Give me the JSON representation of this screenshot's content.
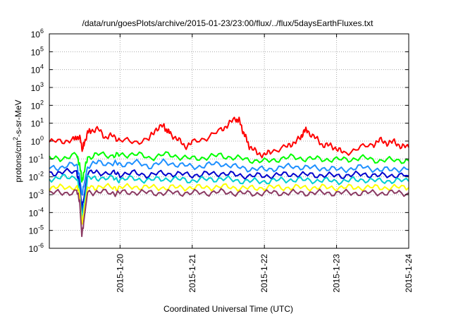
{
  "chart_data": {
    "type": "line",
    "title": "/data/run/goesPlots/archive/2015-01-23/23:00/flux/../flux/5daysEarthFluxes.txt",
    "xlabel": "Coordinated Universal Time (UTC)",
    "ylabel_base": "protons/cm",
    "ylabel_sup": "2",
    "ylabel_rest": "-s-sr-MeV",
    "y_scale": "log",
    "ylim_exp": [
      -6,
      6
    ],
    "y_ticks": [
      {
        "base": "10",
        "exp": "-6",
        "value": -6
      },
      {
        "base": "10",
        "exp": "-5",
        "value": -5
      },
      {
        "base": "10",
        "exp": "-4",
        "value": -4
      },
      {
        "base": "10",
        "exp": "-3",
        "value": -3
      },
      {
        "base": "10",
        "exp": "-2",
        "value": -2
      },
      {
        "base": "10",
        "exp": "-1",
        "value": -1
      },
      {
        "base": "10",
        "exp": "0",
        "value": 0
      },
      {
        "base": "10",
        "exp": "1",
        "value": 1
      },
      {
        "base": "10",
        "exp": "2",
        "value": 2
      },
      {
        "base": "10",
        "exp": "3",
        "value": 3
      },
      {
        "base": "10",
        "exp": "4",
        "value": 4
      },
      {
        "base": "10",
        "exp": "5",
        "value": 5
      },
      {
        "base": "10",
        "exp": "6",
        "value": 6
      }
    ],
    "xlim_days": [
      -0.98,
      4.0
    ],
    "x_ticks": [
      {
        "label": "2015-1-20",
        "value": 0
      },
      {
        "label": "2015-1-21",
        "value": 1
      },
      {
        "label": "2015-1-22",
        "value": 2
      },
      {
        "label": "2015-1-23",
        "value": 3
      },
      {
        "label": "2015-1-24",
        "value": 4
      }
    ],
    "grid": true,
    "series": [
      {
        "color": "#ff0000",
        "width": 2,
        "x": [
          -0.98,
          -0.8,
          -0.65,
          -0.6,
          -0.55,
          -0.52,
          -0.5,
          -0.45,
          -0.4,
          -0.3,
          -0.2,
          -0.1,
          0,
          0.2,
          0.4,
          0.5,
          0.6,
          0.65,
          0.7,
          0.8,
          0.9,
          1.0,
          1.2,
          1.4,
          1.5,
          1.6,
          1.65,
          1.7,
          1.75,
          1.8,
          1.9,
          2.0,
          2.1,
          2.3,
          2.4,
          2.5,
          2.55,
          2.6,
          2.7,
          2.8,
          2.9,
          3.0,
          3.1,
          3.3,
          3.5,
          3.6,
          3.7,
          3.8,
          3.9,
          4.0
        ],
        "y": [
          -0.05,
          0,
          0.05,
          0.25,
          0.1,
          -0.5,
          -0.15,
          0.45,
          0.6,
          0.65,
          0.2,
          0.3,
          0.05,
          -0.05,
          0.1,
          0.7,
          0.85,
          0.6,
          0.4,
          0.1,
          -0.3,
          -0.1,
          0.2,
          0.6,
          0.95,
          1.25,
          1.15,
          0.6,
          0.1,
          -0.35,
          -0.65,
          -0.8,
          -0.55,
          -0.35,
          -0.1,
          0.15,
          0.6,
          0.55,
          0.2,
          -0.2,
          -0.25,
          -0.4,
          -0.7,
          -0.4,
          -0.2,
          0.05,
          -0.1,
          -0.05,
          -0.3,
          -0.35
        ]
      },
      {
        "color": "#00ff00",
        "width": 2,
        "x": [
          -0.98,
          -0.8,
          -0.6,
          -0.56,
          -0.53,
          -0.5,
          -0.45,
          -0.3,
          -0.1,
          0,
          0.2,
          0.4,
          0.6,
          0.8,
          1.0,
          1.2,
          1.4,
          1.6,
          1.8,
          2.0,
          2.2,
          2.4,
          2.6,
          2.8,
          3.0,
          3.2,
          3.4,
          3.6,
          3.8,
          4.0
        ],
        "y": [
          -1.0,
          -0.95,
          -0.8,
          -1.3,
          -2.2,
          -1.8,
          -0.9,
          -0.75,
          -0.8,
          -0.8,
          -0.7,
          -0.95,
          -0.75,
          -0.85,
          -1.0,
          -0.9,
          -0.8,
          -0.95,
          -1.05,
          -1.15,
          -1.0,
          -0.9,
          -1.0,
          -1.0,
          -1.05,
          -1.0,
          -0.95,
          -1.1,
          -1.05,
          -1.1
        ]
      },
      {
        "color": "#1e90ff",
        "width": 2,
        "x": [
          -0.98,
          -0.8,
          -0.6,
          -0.56,
          -0.53,
          -0.5,
          -0.45,
          -0.3,
          -0.1,
          0,
          0.2,
          0.4,
          0.6,
          0.8,
          1.0,
          1.2,
          1.4,
          1.6,
          1.8,
          2.0,
          2.2,
          2.4,
          2.6,
          2.8,
          3.0,
          3.2,
          3.4,
          3.6,
          3.8,
          4.0
        ],
        "y": [
          -1.5,
          -1.45,
          -1.3,
          -2.0,
          -3.0,
          -2.5,
          -1.4,
          -1.2,
          -1.25,
          -1.3,
          -1.2,
          -1.4,
          -1.2,
          -1.3,
          -1.45,
          -1.35,
          -1.25,
          -1.45,
          -1.55,
          -1.6,
          -1.5,
          -1.4,
          -1.5,
          -1.5,
          -1.6,
          -1.55,
          -1.45,
          -1.65,
          -1.55,
          -1.6
        ]
      },
      {
        "color": "#0000cd",
        "width": 2,
        "x": [
          -0.98,
          -0.8,
          -0.6,
          -0.56,
          -0.53,
          -0.5,
          -0.45,
          -0.3,
          -0.1,
          0,
          0.2,
          0.4,
          0.6,
          0.8,
          1.0,
          1.2,
          1.4,
          1.6,
          1.8,
          2.0,
          2.2,
          2.4,
          2.6,
          2.8,
          3.0,
          3.2,
          3.4,
          3.6,
          3.8,
          4.0
        ],
        "y": [
          -1.8,
          -1.75,
          -1.7,
          -2.4,
          -3.8,
          -3.2,
          -1.8,
          -1.75,
          -1.8,
          -1.85,
          -1.8,
          -1.9,
          -1.8,
          -1.85,
          -1.9,
          -1.85,
          -1.8,
          -1.9,
          -1.95,
          -1.95,
          -1.9,
          -1.85,
          -1.9,
          -1.9,
          -1.95,
          -1.9,
          -1.85,
          -1.95,
          -1.9,
          -1.95
        ]
      },
      {
        "color": "#00ced1",
        "width": 2,
        "x": [
          -0.98,
          -0.8,
          -0.6,
          -0.56,
          -0.53,
          -0.5,
          -0.45,
          -0.3,
          -0.1,
          0,
          0.2,
          0.4,
          0.6,
          0.8,
          1.0,
          1.2,
          1.4,
          1.6,
          1.8,
          2.0,
          2.2,
          2.4,
          2.6,
          2.8,
          3.0,
          3.2,
          3.4,
          3.6,
          3.8,
          4.0
        ],
        "y": [
          -2.1,
          -2.05,
          -2.0,
          -2.8,
          -4.3,
          -3.6,
          -2.1,
          -2.05,
          -2.1,
          -2.15,
          -2.1,
          -2.2,
          -2.1,
          -2.15,
          -2.2,
          -2.15,
          -2.1,
          -2.2,
          -2.25,
          -2.25,
          -2.2,
          -2.15,
          -2.2,
          -2.2,
          -2.25,
          -2.2,
          -2.15,
          -2.25,
          -2.2,
          -2.25
        ]
      },
      {
        "color": "#ffff00",
        "width": 2,
        "x": [
          -0.98,
          -0.8,
          -0.6,
          -0.56,
          -0.53,
          -0.5,
          -0.45,
          -0.3,
          -0.1,
          0,
          0.2,
          0.4,
          0.6,
          0.8,
          1.0,
          1.2,
          1.4,
          1.6,
          1.8,
          2.0,
          2.2,
          2.4,
          2.6,
          2.8,
          3.0,
          3.2,
          3.4,
          3.6,
          3.8,
          4.0
        ],
        "y": [
          -2.6,
          -2.6,
          -2.55,
          -3.0,
          -4.8,
          -3.9,
          -2.6,
          -2.55,
          -2.6,
          -2.6,
          -2.55,
          -2.6,
          -2.6,
          -2.6,
          -2.6,
          -2.6,
          -2.55,
          -2.6,
          -2.65,
          -2.6,
          -2.6,
          -2.6,
          -2.6,
          -2.6,
          -2.6,
          -2.6,
          -2.6,
          -2.6,
          -2.6,
          -2.6
        ]
      },
      {
        "color": "#8b3a62",
        "width": 2,
        "x": [
          -0.98,
          -0.8,
          -0.6,
          -0.56,
          -0.53,
          -0.5,
          -0.45,
          -0.3,
          -0.1,
          0,
          0.2,
          0.4,
          0.6,
          0.8,
          1.0,
          1.2,
          1.4,
          1.6,
          1.8,
          2.0,
          2.2,
          2.4,
          2.6,
          2.8,
          3.0,
          3.2,
          3.4,
          3.6,
          3.8,
          4.0
        ],
        "y": [
          -2.9,
          -2.9,
          -2.85,
          -3.3,
          -5.3,
          -4.4,
          -2.85,
          -2.85,
          -2.9,
          -2.9,
          -2.85,
          -2.9,
          -2.9,
          -2.9,
          -2.9,
          -2.9,
          -2.85,
          -2.9,
          -2.95,
          -2.9,
          -2.9,
          -2.9,
          -2.9,
          -2.9,
          -2.9,
          -2.9,
          -2.9,
          -2.9,
          -2.9,
          -2.9
        ]
      }
    ]
  }
}
